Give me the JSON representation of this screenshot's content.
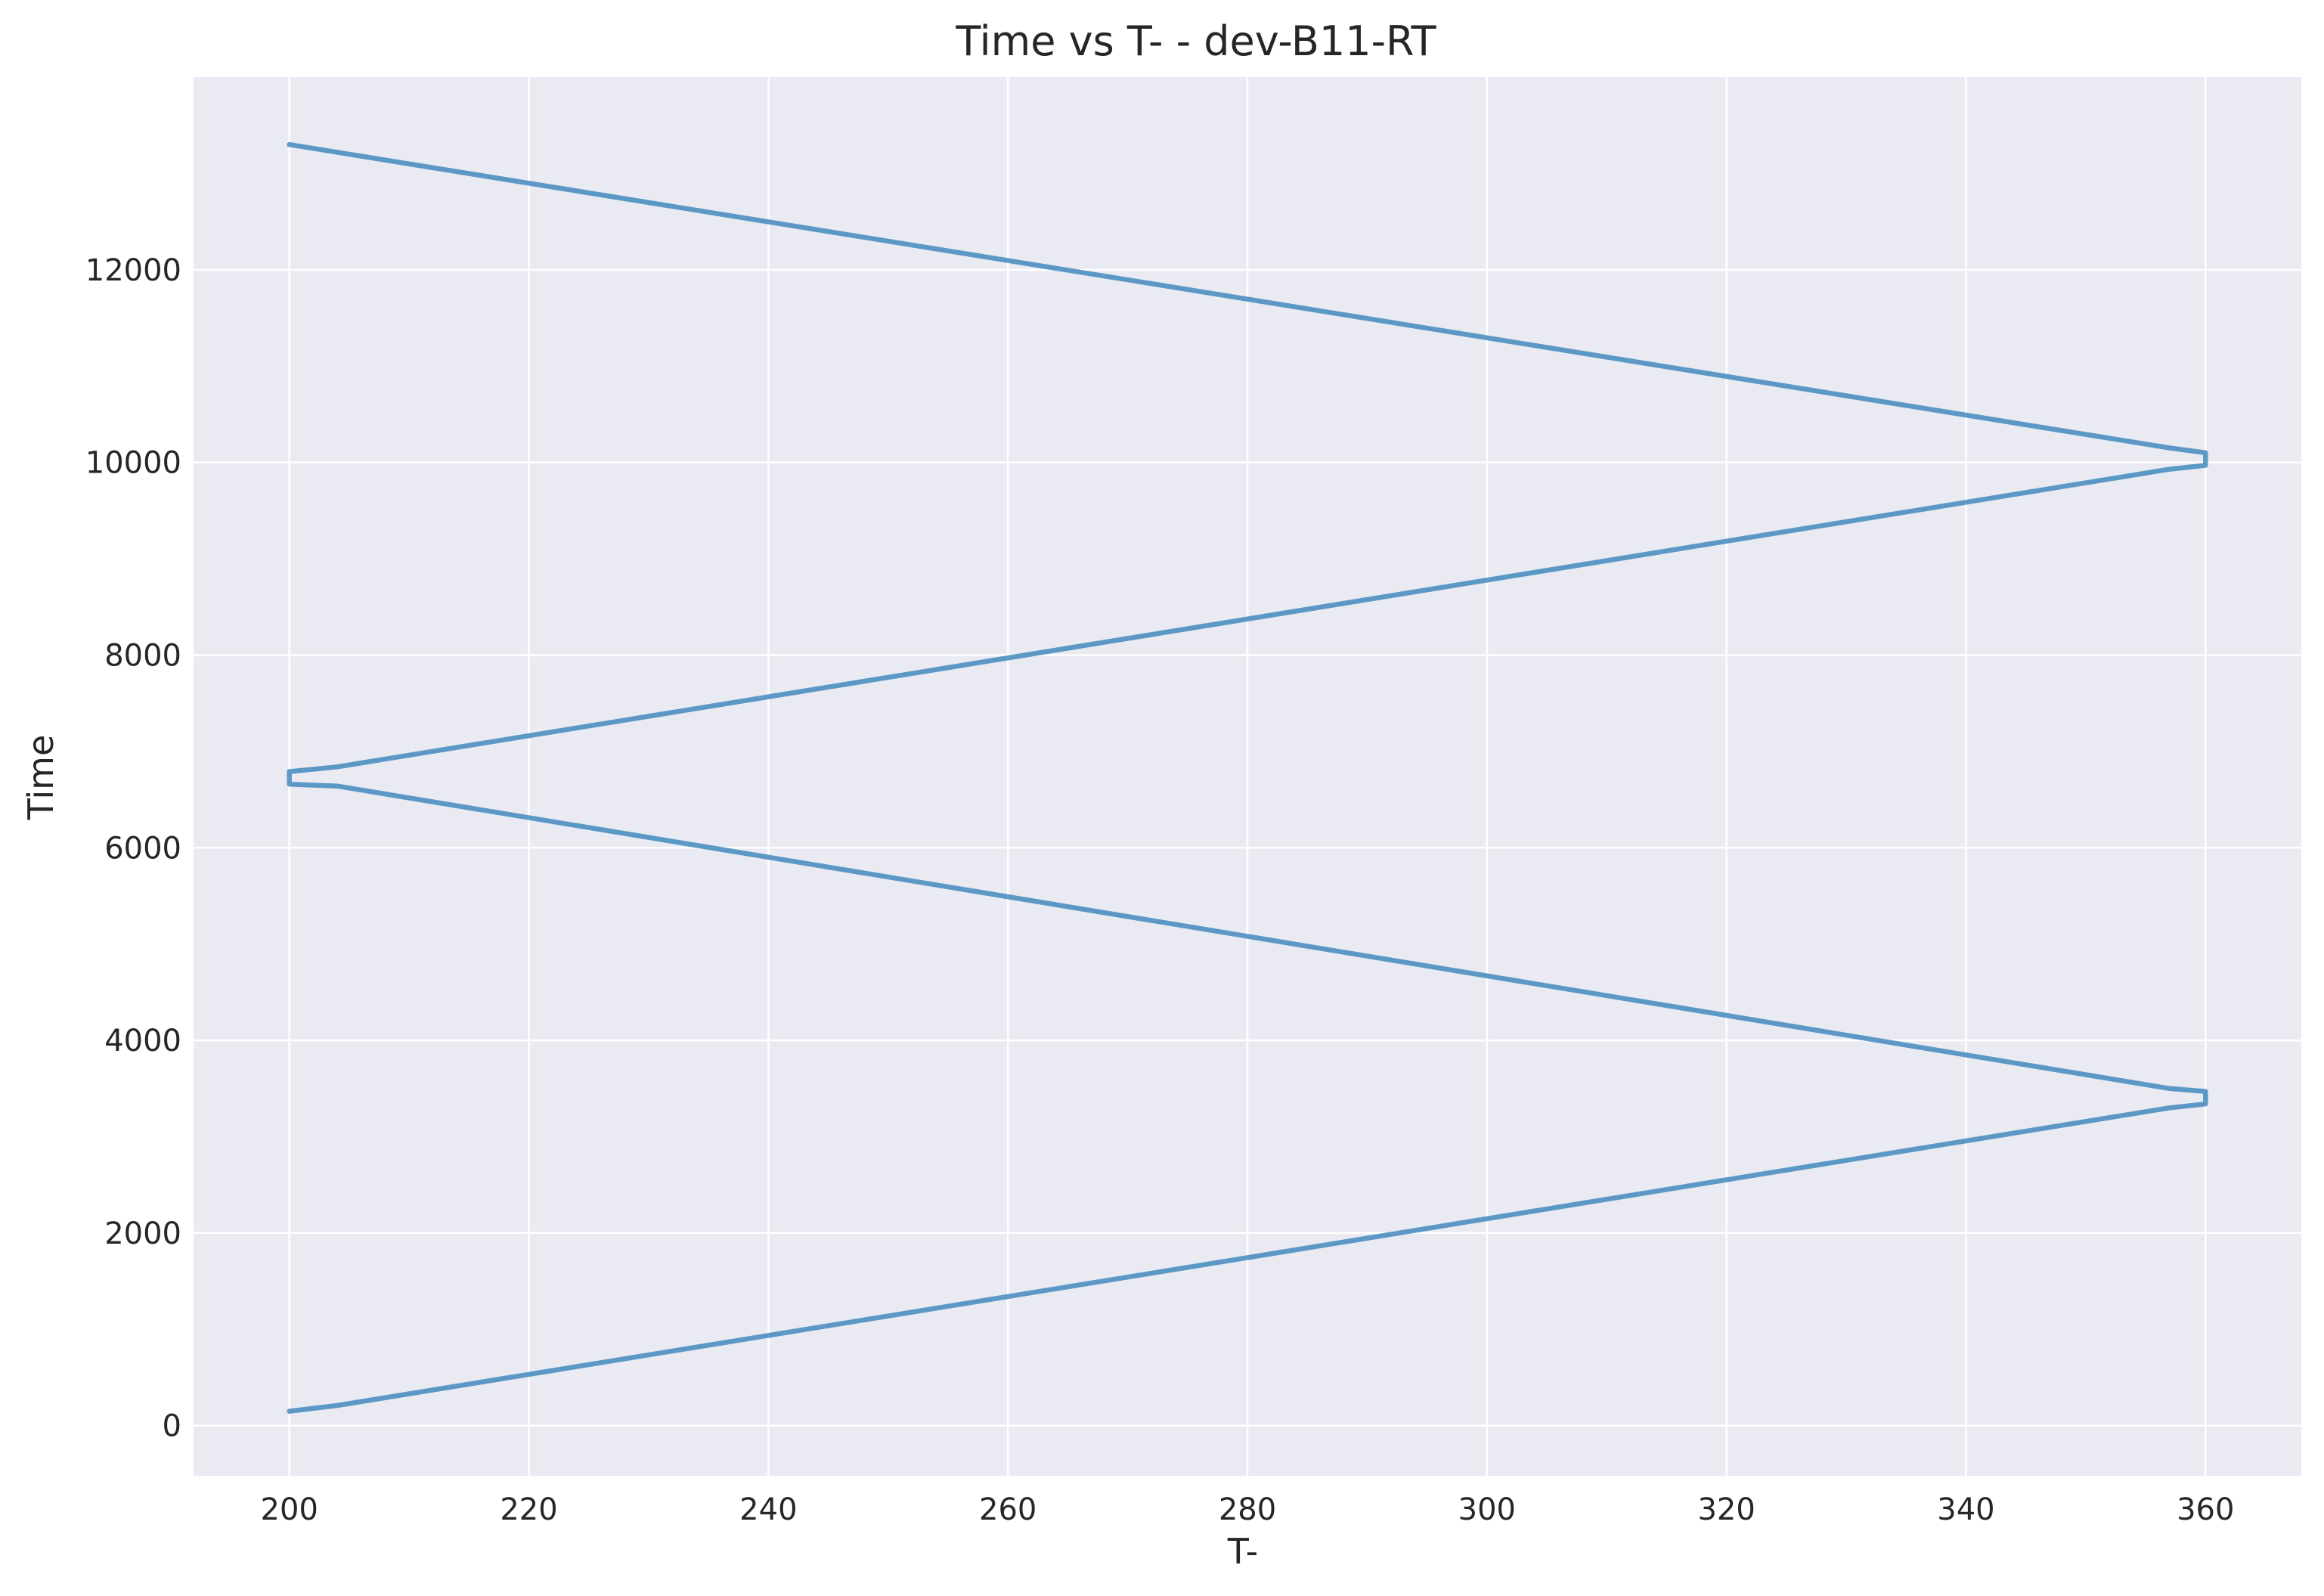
{
  "chart_data": {
    "type": "line",
    "title": "Time vs T- - dev-B11-RT",
    "xlabel": "T-",
    "ylabel": "Time",
    "xlim": [
      192,
      368
    ],
    "ylim": [
      -520,
      14000
    ],
    "xticks": [
      200,
      220,
      240,
      260,
      280,
      300,
      320,
      340,
      360
    ],
    "yticks": [
      0,
      2000,
      4000,
      6000,
      8000,
      10000,
      12000
    ],
    "grid": true,
    "legend": "none",
    "series": [
      {
        "color": "#4c8fc0",
        "points": [
          {
            "x": 200,
            "y": 150
          },
          {
            "x": 204,
            "y": 210
          },
          {
            "x": 357,
            "y": 3300
          },
          {
            "x": 360,
            "y": 3340
          },
          {
            "x": 360,
            "y": 3470
          },
          {
            "x": 357,
            "y": 3500
          },
          {
            "x": 204,
            "y": 6640
          },
          {
            "x": 200,
            "y": 6660
          },
          {
            "x": 200,
            "y": 6790
          },
          {
            "x": 204,
            "y": 6840
          },
          {
            "x": 357,
            "y": 9930
          },
          {
            "x": 360,
            "y": 9970
          },
          {
            "x": 360,
            "y": 10100
          },
          {
            "x": 357,
            "y": 10150
          },
          {
            "x": 200,
            "y": 13300
          }
        ]
      }
    ]
  }
}
